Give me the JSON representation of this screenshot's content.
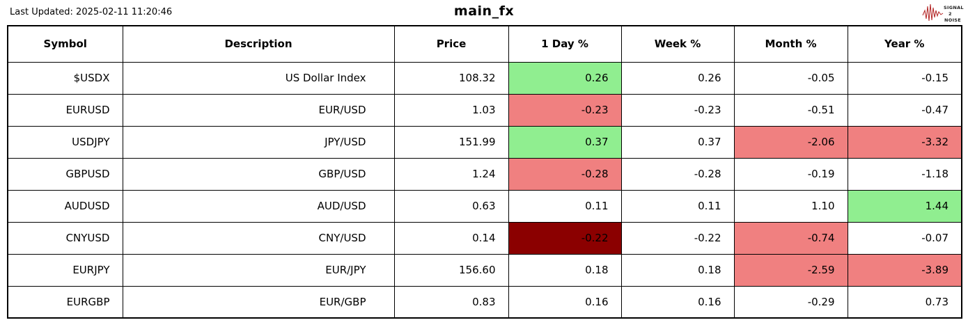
{
  "header": {
    "last_updated": "Last Updated: 2025-02-11 11:20:46",
    "title": "main_fx",
    "logo": [
      "SIGNAL",
      "2",
      "NOISE"
    ]
  },
  "colors": {
    "positive": "#90EE90",
    "negative": "#F08080",
    "strong_negative": "#8B0000",
    "logo_accent": "#B22222"
  },
  "chart_data": {
    "type": "table",
    "columns": [
      "Symbol",
      "Description",
      "Price",
      "1 Day %",
      "Week %",
      "Month %",
      "Year %"
    ],
    "rows": [
      {
        "symbol": "$USDX",
        "description": "US Dollar Index",
        "price": "108.32",
        "day": "0.26",
        "week": "0.26",
        "month": "-0.05",
        "year": "-0.15",
        "highlights": {
          "day": "positive"
        }
      },
      {
        "symbol": "EURUSD",
        "description": "EUR/USD",
        "price": "1.03",
        "day": "-0.23",
        "week": "-0.23",
        "month": "-0.51",
        "year": "-0.47",
        "highlights": {
          "day": "negative"
        }
      },
      {
        "symbol": "USDJPY",
        "description": "JPY/USD",
        "price": "151.99",
        "day": "0.37",
        "week": "0.37",
        "month": "-2.06",
        "year": "-3.32",
        "highlights": {
          "day": "positive",
          "month": "negative",
          "year": "negative"
        }
      },
      {
        "symbol": "GBPUSD",
        "description": "GBP/USD",
        "price": "1.24",
        "day": "-0.28",
        "week": "-0.28",
        "month": "-0.19",
        "year": "-1.18",
        "highlights": {
          "day": "negative"
        }
      },
      {
        "symbol": "AUDUSD",
        "description": "AUD/USD",
        "price": "0.63",
        "day": "0.11",
        "week": "0.11",
        "month": "1.10",
        "year": "1.44",
        "highlights": {
          "year": "positive"
        }
      },
      {
        "symbol": "CNYUSD",
        "description": "CNY/USD",
        "price": "0.14",
        "day": "-0.22",
        "week": "-0.22",
        "month": "-0.74",
        "year": "-0.07",
        "highlights": {
          "day": "strong_negative",
          "month": "negative"
        }
      },
      {
        "symbol": "EURJPY",
        "description": "EUR/JPY",
        "price": "156.60",
        "day": "0.18",
        "week": "0.18",
        "month": "-2.59",
        "year": "-3.89",
        "highlights": {
          "month": "negative",
          "year": "negative"
        }
      },
      {
        "symbol": "EURGBP",
        "description": "EUR/GBP",
        "price": "0.83",
        "day": "0.16",
        "week": "0.16",
        "month": "-0.29",
        "year": "0.73",
        "highlights": {}
      }
    ]
  }
}
